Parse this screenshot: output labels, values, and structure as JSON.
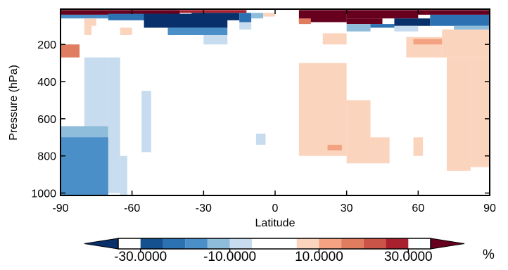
{
  "chart_data": {
    "type": "heatmap",
    "xlabel": "Latitude",
    "ylabel": "Pressure (hPa)",
    "xlim": [
      -90,
      90
    ],
    "ylim": [
      1013,
      10
    ],
    "y_scale": "linear, inverted",
    "xticks": [
      "-90",
      "-60",
      "-30",
      "0",
      "30",
      "60",
      "90"
    ],
    "yticks": [
      "200",
      "400",
      "600",
      "800",
      "1000"
    ],
    "colorbar": {
      "label": "%",
      "tick_labels": [
        "-30.0000",
        "-10.0000",
        "10.0000",
        "30.0000"
      ],
      "tick_values": [
        -30,
        -10,
        10,
        30
      ],
      "range": [
        -40,
        40
      ],
      "bin_width": 5,
      "extend": "both",
      "colors": [
        "#08306b",
        "#15508f",
        "#2c72b3",
        "#4a8fc7",
        "#8ebcdb",
        "#c7dcee",
        "#ffffff",
        "#ffffff",
        "#fbd4bd",
        "#f4a281",
        "#e07d61",
        "#cb5448",
        "#a9202e",
        "#67001f"
      ],
      "bins": [
        [
          -35,
          -30
        ],
        [
          -30,
          -25
        ],
        [
          -25,
          -20
        ],
        [
          -20,
          -15
        ],
        [
          -15,
          -10
        ],
        [
          -10,
          -5
        ],
        [
          -5,
          0
        ],
        [
          0,
          5
        ],
        [
          5,
          10
        ],
        [
          10,
          15
        ],
        [
          15,
          20
        ],
        [
          20,
          25
        ],
        [
          25,
          30
        ],
        [
          30,
          35
        ]
      ]
    },
    "regions": [
      {
        "lat": [
          -90,
          -40
        ],
        "p": [
          15,
          40
        ],
        "value": 35
      },
      {
        "lat": [
          -40,
          -12
        ],
        "p": [
          15,
          30
        ],
        "value": 28
      },
      {
        "lat": [
          -90,
          -70
        ],
        "p": [
          40,
          60
        ],
        "value": -17
      },
      {
        "lat": [
          -70,
          -45
        ],
        "p": [
          35,
          70
        ],
        "value": -25
      },
      {
        "lat": [
          -55,
          -20
        ],
        "p": [
          35,
          110
        ],
        "value": -33
      },
      {
        "lat": [
          -35,
          -15
        ],
        "p": [
          30,
          70
        ],
        "value": -33
      },
      {
        "lat": [
          -15,
          -10
        ],
        "p": [
          30,
          80
        ],
        "value": -22
      },
      {
        "lat": [
          -10,
          -5
        ],
        "p": [
          30,
          60
        ],
        "value": -12
      },
      {
        "lat": [
          -45,
          -20
        ],
        "p": [
          110,
          150
        ],
        "value": -17
      },
      {
        "lat": [
          -30,
          -20
        ],
        "p": [
          150,
          200
        ],
        "value": -7
      },
      {
        "lat": [
          -15,
          -10
        ],
        "p": [
          80,
          120
        ],
        "value": -7
      },
      {
        "lat": [
          -80,
          -75
        ],
        "p": [
          60,
          100
        ],
        "value": 7
      },
      {
        "lat": [
          -90,
          -82
        ],
        "p": [
          200,
          270
        ],
        "value": 15
      },
      {
        "lat": [
          -80,
          -77
        ],
        "p": [
          100,
          150
        ],
        "value": 7
      },
      {
        "lat": [
          -65,
          -60
        ],
        "p": [
          110,
          150
        ],
        "value": 7
      },
      {
        "lat": [
          -5,
          0
        ],
        "p": [
          30,
          50
        ],
        "value": 7
      },
      {
        "lat": [
          10,
          30
        ],
        "p": [
          15,
          80
        ],
        "value": 35
      },
      {
        "lat": [
          30,
          60
        ],
        "p": [
          15,
          60
        ],
        "value": 34
      },
      {
        "lat": [
          60,
          90
        ],
        "p": [
          15,
          40
        ],
        "value": 30
      },
      {
        "lat": [
          10,
          15
        ],
        "p": [
          60,
          90
        ],
        "value": 18
      },
      {
        "lat": [
          30,
          45
        ],
        "p": [
          60,
          90
        ],
        "value": 30
      },
      {
        "lat": [
          30,
          40
        ],
        "p": [
          90,
          130
        ],
        "value": -12
      },
      {
        "lat": [
          40,
          50
        ],
        "p": [
          90,
          110
        ],
        "value": -22
      },
      {
        "lat": [
          50,
          65
        ],
        "p": [
          60,
          100
        ],
        "value": -33
      },
      {
        "lat": [
          65,
          90
        ],
        "p": [
          40,
          100
        ],
        "value": -22
      },
      {
        "lat": [
          50,
          60
        ],
        "p": [
          100,
          130
        ],
        "value": -7
      },
      {
        "lat": [
          75,
          90
        ],
        "p": [
          100,
          130
        ],
        "value": -12
      },
      {
        "lat": [
          55,
          70
        ],
        "p": [
          160,
          270
        ],
        "value": 7
      },
      {
        "lat": [
          70,
          90
        ],
        "p": [
          120,
          270
        ],
        "value": 7
      },
      {
        "lat": [
          58,
          70
        ],
        "p": [
          170,
          200
        ],
        "value": 12
      },
      {
        "lat": [
          20,
          30
        ],
        "p": [
          140,
          200
        ],
        "value": 7
      },
      {
        "lat": [
          10,
          30
        ],
        "p": [
          300,
          800
        ],
        "value": 7
      },
      {
        "lat": [
          30,
          40
        ],
        "p": [
          500,
          840
        ],
        "value": 7
      },
      {
        "lat": [
          40,
          48
        ],
        "p": [
          700,
          840
        ],
        "value": 7
      },
      {
        "lat": [
          22,
          28
        ],
        "p": [
          740,
          770
        ],
        "value": 12
      },
      {
        "lat": [
          58,
          62
        ],
        "p": [
          700,
          800
        ],
        "value": 7
      },
      {
        "lat": [
          72,
          82
        ],
        "p": [
          270,
          880
        ],
        "value": 7
      },
      {
        "lat": [
          82,
          90
        ],
        "p": [
          270,
          860
        ],
        "value": 7
      },
      {
        "lat": [
          -80,
          -70
        ],
        "p": [
          270,
          640
        ],
        "value": -7
      },
      {
        "lat": [
          -70,
          -65
        ],
        "p": [
          270,
          1000
        ],
        "value": -7
      },
      {
        "lat": [
          -90,
          -70
        ],
        "p": [
          640,
          1013
        ],
        "value": -12
      },
      {
        "lat": [
          -90,
          -70
        ],
        "p": [
          700,
          1013
        ],
        "value": -17
      },
      {
        "lat": [
          -65,
          -62
        ],
        "p": [
          800,
          1013
        ],
        "value": -7
      },
      {
        "lat": [
          -56,
          -52
        ],
        "p": [
          450,
          780
        ],
        "value": -7
      },
      {
        "lat": [
          -8,
          -4
        ],
        "p": [
          680,
          740
        ],
        "value": -7
      }
    ]
  }
}
